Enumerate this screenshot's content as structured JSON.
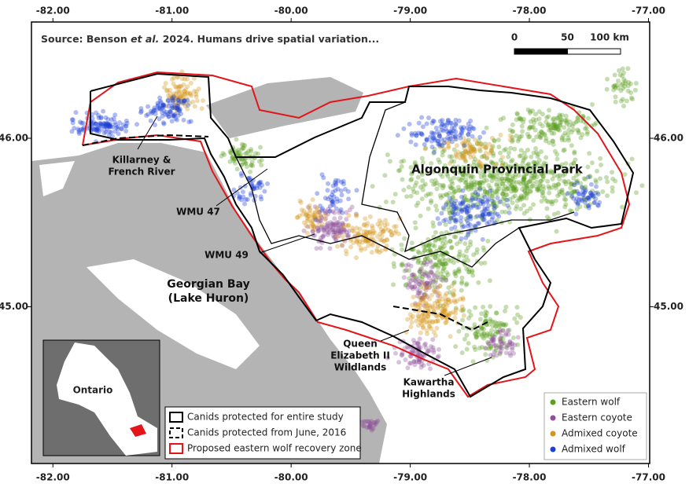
{
  "map": {
    "source": {
      "prefix": "Source: Benson ",
      "italic": "et al.",
      "suffix": " 2024. Humans drive spatial variation..."
    },
    "xlim": [
      -82.18,
      -76.99
    ],
    "ylim": [
      44.07,
      46.69
    ],
    "xticks": [
      {
        "value": -82,
        "label": "-82.00"
      },
      {
        "value": -81,
        "label": "-81.00"
      },
      {
        "value": -80,
        "label": "-80.00"
      },
      {
        "value": -79,
        "label": "-79.00"
      },
      {
        "value": -78,
        "label": "-78.00"
      },
      {
        "value": -77,
        "label": "-77.00"
      }
    ],
    "yticks": [
      {
        "value": 45,
        "label": "45.00"
      },
      {
        "value": 46,
        "label": "46.00"
      }
    ],
    "scale_bar": {
      "ticks": [
        0,
        50,
        {
          "value": 100,
          "label": "100 km"
        }
      ]
    },
    "places": [
      {
        "lines": [
          "Killarney &",
          "French River"
        ]
      },
      {
        "lines": [
          "WMU 47"
        ]
      },
      {
        "lines": [
          "WMU 49"
        ]
      },
      {
        "lines": [
          "Georgian Bay",
          "(Lake Huron)"
        ]
      },
      {
        "lines": [
          "Algonquin Provincial Park"
        ]
      },
      {
        "lines": [
          "Queen",
          "Elizabeth II",
          "Wildlands"
        ]
      },
      {
        "lines": [
          "Kawartha",
          "Highlands"
        ]
      }
    ],
    "inset_label": "Ontario",
    "boundary_legend": [
      {
        "name": "Canids protected for entire study",
        "style": "solid",
        "color": "#000000"
      },
      {
        "name": "Canids protected from June, 2016",
        "style": "dashed",
        "color": "#000000"
      },
      {
        "name": "Proposed eastern wolf recovery zone",
        "style": "solid",
        "color": "#e3151a"
      }
    ],
    "legend": [
      {
        "name": "Eastern wolf",
        "color": "#5a9e1e"
      },
      {
        "name": "Eastern coyote",
        "color": "#8e4f9c"
      },
      {
        "name": "Admixed coyote",
        "color": "#d3951b"
      },
      {
        "name": "Admixed wolf",
        "color": "#1c3fd6"
      }
    ]
  }
}
